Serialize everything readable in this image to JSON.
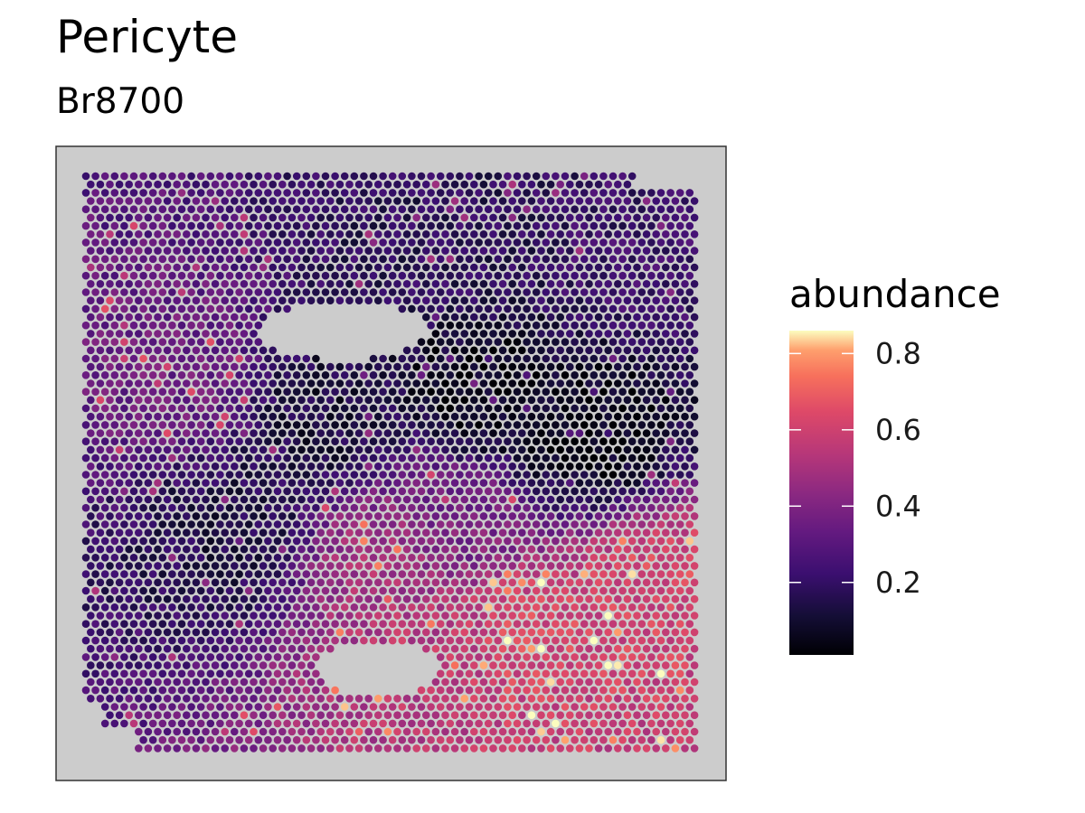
{
  "header": {
    "title": "Pericyte",
    "subtitle": "Br8700"
  },
  "chart_data": {
    "type": "scatter",
    "title": "Pericyte",
    "subtitle": "Br8700",
    "xlabel": "",
    "ylabel": "",
    "panel_background": "#cccccc",
    "point_color_scale": "magma",
    "legend": {
      "title": "abundance",
      "placement": "right",
      "ticks": [
        0.2,
        0.4,
        0.6,
        0.8
      ],
      "tick_labels": [
        "0.2",
        "0.4",
        "0.6",
        "0.8"
      ],
      "range": [
        0.01,
        0.86
      ]
    },
    "value_range": [
      0.01,
      0.86
    ],
    "grid": {
      "x_range": [
        0,
        1
      ],
      "y_range": [
        0,
        1
      ]
    },
    "regions": [
      {
        "x": 0.72,
        "y": 0.8,
        "value": 0.62
      },
      {
        "x": 0.55,
        "y": 0.83,
        "value": 0.55
      },
      {
        "x": 0.93,
        "y": 0.72,
        "value": 0.62
      },
      {
        "x": 0.48,
        "y": 0.68,
        "value": 0.5
      },
      {
        "x": 0.65,
        "y": 0.38,
        "value": 0.06
      },
      {
        "x": 0.82,
        "y": 0.45,
        "value": 0.05
      },
      {
        "x": 0.4,
        "y": 0.42,
        "value": 0.12
      },
      {
        "x": 0.25,
        "y": 0.62,
        "value": 0.14
      },
      {
        "x": 0.62,
        "y": 0.12,
        "value": 0.18
      },
      {
        "x": 0.9,
        "y": 0.15,
        "value": 0.22
      },
      {
        "x": 0.15,
        "y": 0.35,
        "value": 0.35
      },
      {
        "x": 0.6,
        "y": 0.6,
        "value": 0.38
      }
    ],
    "holes": [
      {
        "cx": 0.42,
        "cy": 0.27,
        "rx": 0.14,
        "ry": 0.05
      },
      {
        "cx": 0.48,
        "cy": 0.86,
        "rx": 0.1,
        "ry": 0.05
      }
    ]
  },
  "colors": {
    "panel_background": "#cccccc",
    "panel_border": "#333333"
  }
}
